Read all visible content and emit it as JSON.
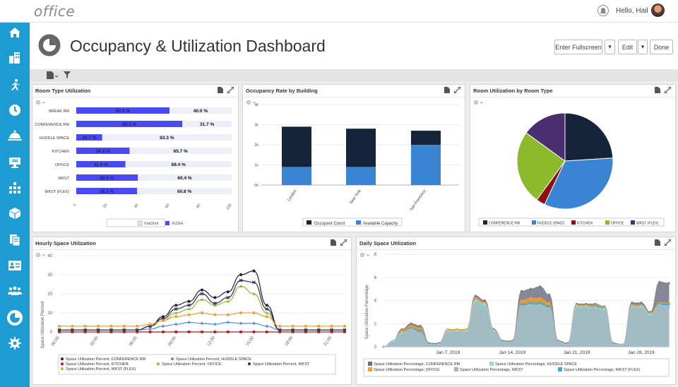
{
  "app": {
    "logo": "office",
    "greeting": "Hello, Hail"
  },
  "header": {
    "title": "Occupancy & Utilization Dashboard",
    "fullscreen_label": "Enter Fullscreen",
    "edit_label": "Edit",
    "done_label": "Done"
  },
  "colors": {
    "sidebar": "#1d9bd3",
    "active": "#4a4af5",
    "inactive": "#eeeef8",
    "navy": "#15233b",
    "blue": "#3a84d4",
    "red": "#8e0f16",
    "green": "#8bbb2c",
    "purple": "#4b2e70",
    "orange": "#f0a030",
    "teal": "#5ec0c0"
  },
  "room_type": {
    "title": "Room Type Utilization",
    "legend": [
      "Inactive",
      "Active"
    ],
    "chart_data": {
      "type": "bar",
      "categories": [
        "BREAK RM",
        "CONFERENCE RM",
        "HUDDLE SPACE",
        "KITCHEN",
        "OFFICE",
        "WKST",
        "WKST (FLEX)"
      ],
      "series": [
        {
          "name": "Active",
          "values": [
            60.0,
            68.3,
            16.7,
            34.3,
            31.6,
            39.6,
            39.2
          ],
          "labels": [
            "60.0 %",
            "68.3 %",
            "16.7 %",
            "34.3 %",
            "31.6 %",
            "39.6 %",
            "39.2 %"
          ]
        },
        {
          "name": "Inactive",
          "values": [
            40.0,
            31.7,
            83.3,
            65.7,
            68.4,
            60.4,
            60.8
          ],
          "labels": [
            "40.0 %",
            "31.7 %",
            "83.3 %",
            "65.7 %",
            "68.4 %",
            "60.4 %",
            "60.8 %"
          ]
        }
      ],
      "ticks": [
        "0",
        "20",
        "40",
        "60",
        "80",
        "100"
      ],
      "xlim": [
        0,
        100
      ]
    }
  },
  "occupancy": {
    "title": "Occupancy Rate by Building",
    "chart_data": {
      "type": "bar",
      "categories": [
        "London",
        "New York",
        "San Francisco"
      ],
      "series": [
        {
          "name": "Occupant Count",
          "values": [
            2000,
            1900,
            700
          ]
        },
        {
          "name": "Available Capacity",
          "values": [
            900,
            900,
            2000
          ]
        }
      ],
      "yticks": [
        "0k",
        "1k",
        "2k",
        "3k",
        "4k"
      ],
      "ylim": [
        0,
        4000
      ]
    }
  },
  "room_util": {
    "title": "Room Utilization by Room Type",
    "chart_data": {
      "type": "pie",
      "labels": [
        "CONFERENCE RM",
        "HUDDLE SPACE",
        "KITCHEN",
        "OFFICE",
        "WKST (FLEX)"
      ],
      "values": [
        24,
        33,
        3,
        25,
        15
      ]
    }
  },
  "hourly": {
    "title": "Hourly Space Utilization",
    "ylabel": "Space Utilization Percent",
    "chart_data": {
      "type": "line",
      "x": [
        "00:00",
        "01:00",
        "02:00",
        "03:00",
        "04:00",
        "05:00",
        "06:00",
        "07:00",
        "08:00",
        "09:00",
        "10:00",
        "11:00",
        "12:00",
        "13:00",
        "14:00",
        "15:00",
        "16:00",
        "17:00",
        "18:00",
        "19:00",
        "20:00",
        "21:00",
        "22:00"
      ],
      "xticks": [
        "00:00",
        "03:00",
        "06:00",
        "09:00",
        "12:00",
        "15:00",
        "18:00",
        "21:00"
      ],
      "yticks": [
        "0",
        "10",
        "20",
        "30",
        "40"
      ],
      "ylim": [
        0,
        40
      ],
      "series": [
        {
          "name": "Space Utilization Percent, CONFERENCE RM",
          "values": [
            1,
            1,
            1,
            1,
            1,
            1,
            1,
            3,
            8,
            14,
            16,
            22,
            18,
            21,
            30,
            32,
            14,
            1,
            1,
            1,
            1,
            1,
            1
          ]
        },
        {
          "name": "Space Utilization Percent, HUDDLE SPACE",
          "values": [
            1,
            1,
            1,
            1,
            1,
            1,
            1,
            1.5,
            3,
            4,
            5,
            4.5,
            4,
            5,
            4.5,
            4.5,
            3,
            1,
            1,
            1,
            1,
            1,
            1
          ]
        },
        {
          "name": "Space Utilization Percent, KITCHEN",
          "values": [
            0,
            0,
            0,
            0,
            0,
            0,
            0,
            0,
            0,
            0,
            0,
            0,
            0,
            0,
            0,
            0,
            0,
            0,
            0,
            0,
            0,
            0,
            0
          ]
        },
        {
          "name": "Space Utilization Percent, OFFICE",
          "values": [
            1,
            1,
            1,
            1,
            1,
            1,
            1,
            3,
            6,
            10,
            12,
            17,
            14,
            16,
            24,
            20,
            10,
            1,
            1,
            1,
            1,
            1,
            1
          ]
        },
        {
          "name": "Space Utilization Percent, WKST",
          "values": [
            1,
            1,
            1,
            1,
            1,
            1,
            1,
            3,
            7,
            12,
            14,
            20,
            15,
            18,
            27,
            26,
            12,
            1,
            1,
            1,
            1,
            1,
            1
          ]
        },
        {
          "name": "Space Utilization Percent, WKST (FLEX)",
          "values": [
            3,
            3,
            3,
            3,
            3,
            3,
            3,
            4,
            6,
            8,
            9,
            10,
            9,
            9,
            10,
            10,
            8,
            3,
            3,
            3,
            3,
            3,
            3
          ]
        }
      ]
    }
  },
  "daily": {
    "title": "Daily Space Utilization",
    "ylabel": "Space Utilization Percentage",
    "chart_data": {
      "type": "area",
      "x": [
        "Dec 31",
        "Jan 1",
        "Jan 2",
        "Jan 3",
        "Jan 4",
        "Jan 5",
        "Jan 6",
        "Jan 7",
        "Jan 8",
        "Jan 9",
        "Jan 10",
        "Jan 11",
        "Jan 12",
        "Jan 13",
        "Jan 14",
        "Jan 15",
        "Jan 16",
        "Jan 17",
        "Jan 18",
        "Jan 19",
        "Jan 20",
        "Jan 21",
        "Jan 22",
        "Jan 23",
        "Jan 24",
        "Jan 25",
        "Jan 26",
        "Jan 27",
        "Jan 28",
        "Jan 29",
        "Jan 30",
        "Jan 31"
      ],
      "xticks": [
        "Jan 7, 2019",
        "Jan 14, 2019",
        "Jan 21, 2019",
        "Jan 28, 2019"
      ],
      "yticks": [
        "0",
        "2",
        "4",
        "6",
        "8"
      ],
      "ylim": [
        0,
        8
      ],
      "series": [
        {
          "name": "Space Utilization Percentage, CONFERENCE RM",
          "values": [
            0,
            0.5,
            1.5,
            2,
            1.8,
            0.3,
            0.3,
            1.5,
            1.5,
            1.5,
            4.4,
            4,
            1.5,
            0.5,
            0.5,
            4.8,
            5,
            5.2,
            4.5,
            0.5,
            0.3,
            3.7,
            3.7,
            3.7,
            3.5,
            0.3,
            0.2,
            3.8,
            3.8,
            3,
            5.6,
            5.5
          ]
        },
        {
          "name": "Space Utilization Percentage, HUDDLE SPACE",
          "values": [
            0,
            0.5,
            1.2,
            1.5,
            1.2,
            0.2,
            0.2,
            1.4,
            1.4,
            1.4,
            4,
            3.7,
            1.4,
            0.4,
            0.4,
            3.5,
            3.6,
            3.6,
            3.3,
            0.4,
            0.2,
            3.5,
            3.5,
            3.4,
            3.3,
            0.2,
            0.2,
            3.5,
            3.5,
            2.8,
            3.6,
            3.5
          ]
        },
        {
          "name": "Space Utilization Percentage, OFFICE",
          "values": [
            0,
            0.4,
            1.4,
            1.8,
            1.6,
            0.2,
            0.2,
            1.5,
            1.5,
            1.5,
            4.2,
            3.8,
            1.4,
            0.4,
            0.4,
            4,
            4.2,
            4.2,
            3.8,
            0.4,
            0.2,
            3.6,
            3.6,
            3.6,
            3.5,
            0.2,
            0.2,
            3.6,
            3.6,
            2.9,
            3.8,
            3.8
          ]
        },
        {
          "name": "Space Utilization Percentage, WKST",
          "values": [
            0,
            0.3,
            1,
            1.4,
            1.2,
            0.1,
            0.1,
            1.2,
            1.2,
            1.2,
            3.6,
            3.2,
            1.2,
            0.3,
            0.3,
            3.4,
            3.5,
            3.5,
            3.2,
            0.3,
            0.1,
            3.2,
            3.2,
            3.2,
            3.1,
            0.1,
            0.1,
            3.2,
            3.2,
            2.5,
            3.5,
            3.4
          ]
        },
        {
          "name": "Space Utilization Percentage, WKST (FLEX)",
          "values": [
            0,
            0.4,
            1.2,
            1.6,
            1.4,
            0.2,
            0.2,
            1.3,
            1.3,
            1.3,
            3.9,
            3.5,
            1.3,
            0.4,
            0.4,
            3.7,
            3.8,
            3.8,
            3.5,
            0.4,
            0.2,
            3.5,
            3.5,
            3.5,
            3.4,
            0.2,
            0.2,
            3.5,
            3.5,
            2.7,
            3.7,
            3.7
          ]
        }
      ]
    }
  }
}
